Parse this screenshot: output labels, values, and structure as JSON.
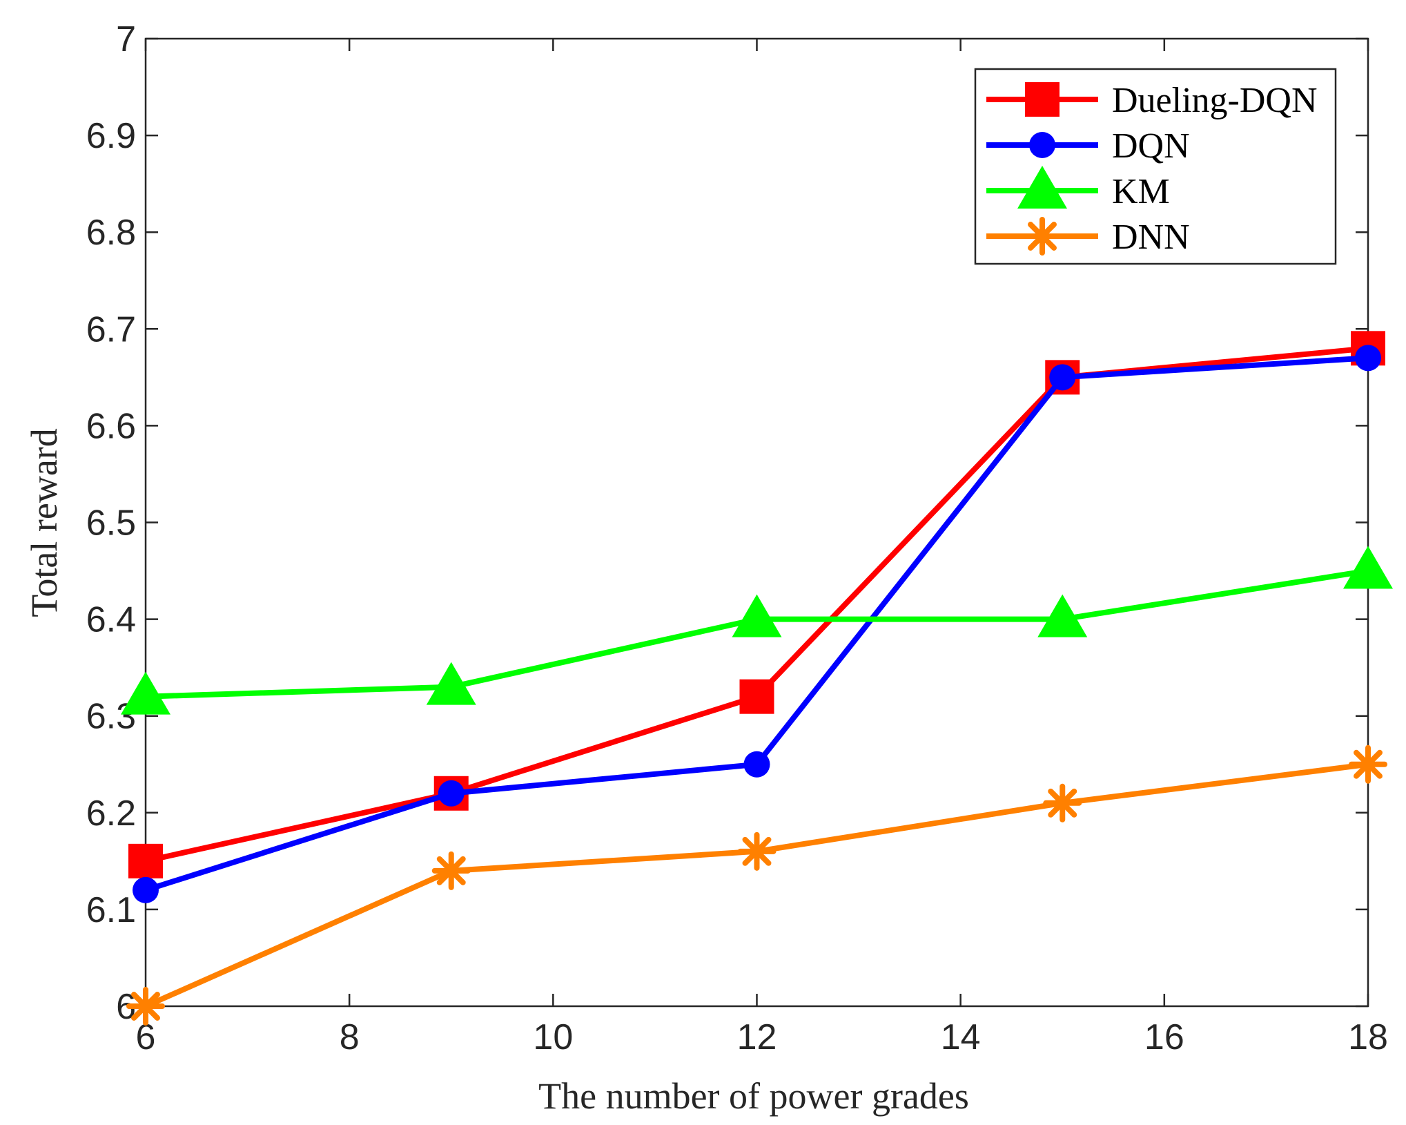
{
  "chart_data": {
    "type": "line",
    "title": "",
    "xlabel": "The number of power grades",
    "ylabel": "Total reward",
    "xlim": [
      6,
      18
    ],
    "ylim": [
      6,
      7
    ],
    "xticks": [
      6,
      8,
      10,
      12,
      14,
      16,
      18
    ],
    "yticks": [
      6,
      6.1,
      6.2,
      6.3,
      6.4,
      6.5,
      6.6,
      6.7,
      6.8,
      6.9,
      7
    ],
    "xtick_labels": [
      "6",
      "8",
      "10",
      "12",
      "14",
      "16",
      "18"
    ],
    "ytick_labels": [
      "6",
      "6.1",
      "6.2",
      "6.3",
      "6.4",
      "6.5",
      "6.6",
      "6.7",
      "6.8",
      "6.9",
      "7"
    ],
    "grid": false,
    "legend_position": "top-right",
    "x": [
      6,
      9,
      12,
      15,
      18
    ],
    "series": [
      {
        "name": "Dueling-DQN",
        "color": "#ff0000",
        "marker": "square",
        "values": [
          6.15,
          6.22,
          6.32,
          6.65,
          6.68
        ]
      },
      {
        "name": "DQN",
        "color": "#0000ff",
        "marker": "circle",
        "values": [
          6.12,
          6.22,
          6.25,
          6.65,
          6.67
        ]
      },
      {
        "name": "KM",
        "color": "#00ff00",
        "marker": "triangle",
        "values": [
          6.32,
          6.33,
          6.4,
          6.4,
          6.45
        ]
      },
      {
        "name": "DNN",
        "color": "#ff8000",
        "marker": "asterisk",
        "values": [
          6.0,
          6.14,
          6.16,
          6.21,
          6.25
        ]
      }
    ]
  }
}
